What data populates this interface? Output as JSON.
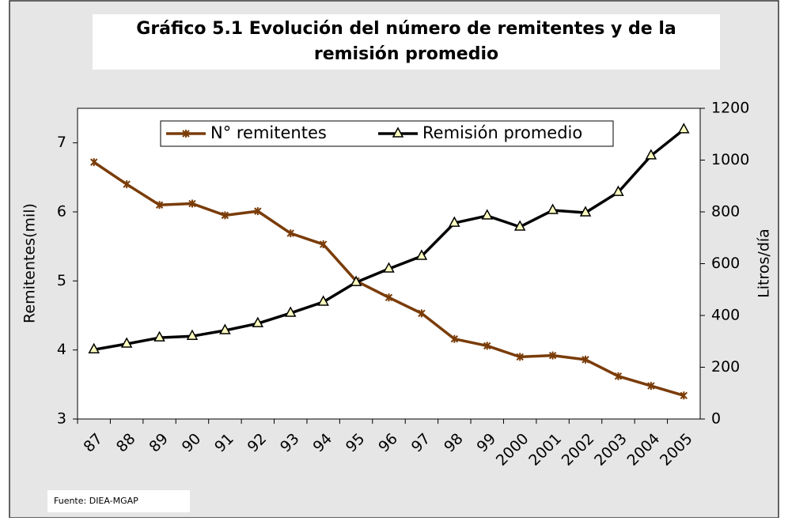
{
  "chart_data": {
    "type": "line",
    "title": "Gráfico 5.1 Evolución del número de remitentes y de la remisión promedio",
    "categories": [
      "87",
      "88",
      "89",
      "90",
      "91",
      "92",
      "93",
      "94",
      "95",
      "96",
      "97",
      "98",
      "99",
      "2000",
      "2001",
      "2002",
      "2003",
      "2004",
      "2005"
    ],
    "series": [
      {
        "name": "N° remitentes",
        "color": "#7a3c08",
        "values": [
          6.72,
          6.4,
          6.1,
          6.12,
          5.95,
          6.01,
          5.69,
          5.53,
          5.0,
          4.76,
          4.53,
          4.16,
          4.06,
          3.9,
          3.92,
          3.86,
          3.62,
          3.48,
          3.34
        ]
      },
      {
        "name": "Remisión promedio",
        "color": "#000000",
        "axis": "y2",
        "values": [
          268,
          290,
          314,
          320,
          342,
          369,
          409,
          452,
          528,
          580,
          629,
          757,
          785,
          742,
          806,
          797,
          876,
          1017,
          1118
        ]
      }
    ],
    "ylabel": "Remitentes(mil)",
    "y2label": "Litros/día",
    "ylim": [
      3,
      7.5
    ],
    "yticks": [
      3,
      4,
      5,
      6,
      7
    ],
    "y2lim": [
      0,
      1200
    ],
    "y2ticks": [
      0,
      200,
      400,
      600,
      800,
      1000,
      1200
    ],
    "source": "Fuente: DIEA-MGAP"
  }
}
